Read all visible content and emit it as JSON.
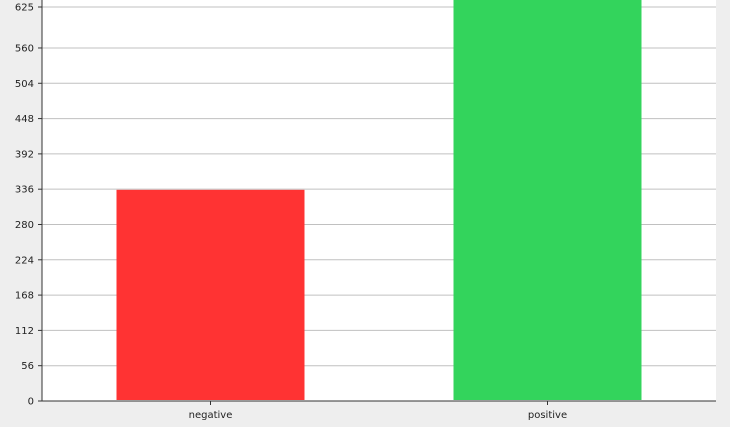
{
  "chart_data": {
    "type": "bar",
    "categories": [
      "negative",
      "positive"
    ],
    "values": [
      335,
      640
    ],
    "bar_colors": [
      "#ff3333",
      "#33d45c"
    ],
    "yticks": [
      0,
      56,
      112,
      168,
      224,
      280,
      336,
      392,
      448,
      504,
      560,
      625
    ],
    "ylim": [
      0,
      625
    ],
    "grid": true,
    "title": "",
    "xlabel": "",
    "ylabel": ""
  },
  "colors": {
    "plot_background": "#ffffff",
    "outer_background": "#eeeeee",
    "grid": "#c0c0c0",
    "axis": "#333333"
  }
}
